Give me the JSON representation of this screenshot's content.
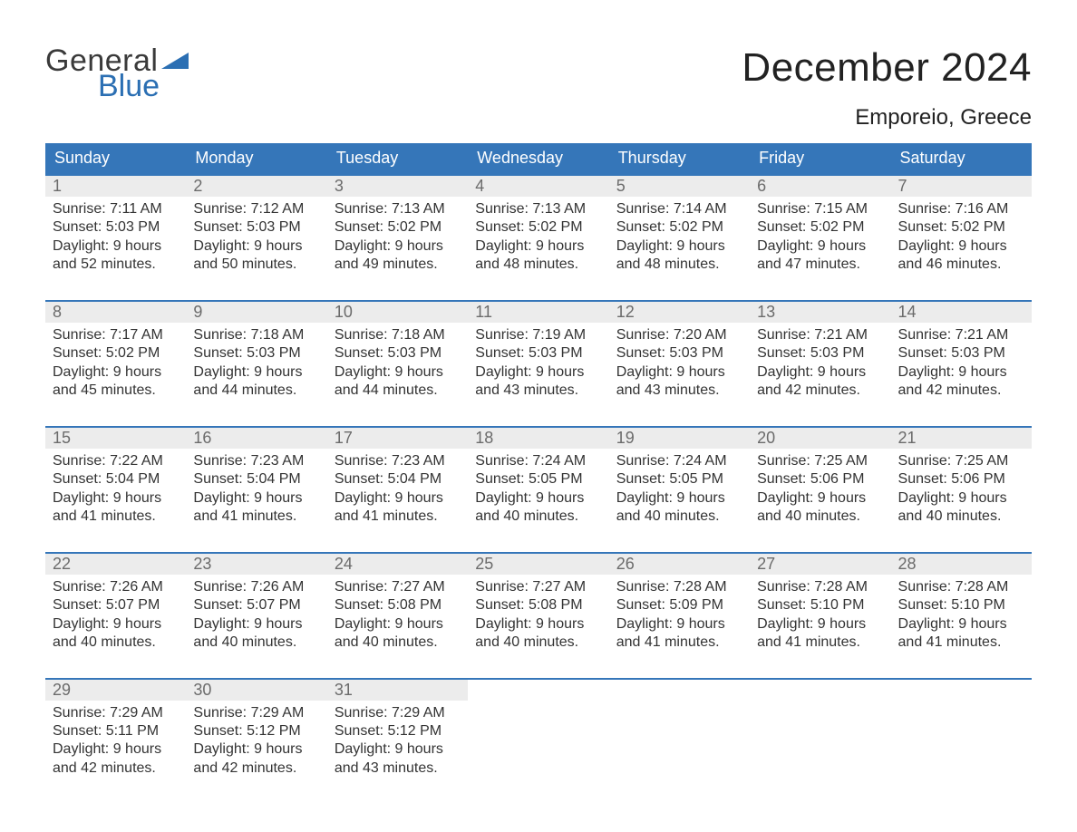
{
  "logo": {
    "word1": "General",
    "word2": "Blue",
    "tri_color": "#2b6fb3"
  },
  "title": "December 2024",
  "location": "Emporeio, Greece",
  "colors": {
    "header_bg": "#3576b9",
    "header_text": "#ffffff",
    "week_border": "#3576b9",
    "daynum_bg": "#ececec",
    "daynum_text": "#6b6b6b",
    "body_text": "#333333",
    "page_bg": "#ffffff"
  },
  "days_of_week": [
    "Sunday",
    "Monday",
    "Tuesday",
    "Wednesday",
    "Thursday",
    "Friday",
    "Saturday"
  ],
  "weeks": [
    [
      {
        "n": "1",
        "sunrise": "Sunrise: 7:11 AM",
        "sunset": "Sunset: 5:03 PM",
        "d1": "Daylight: 9 hours",
        "d2": "and 52 minutes."
      },
      {
        "n": "2",
        "sunrise": "Sunrise: 7:12 AM",
        "sunset": "Sunset: 5:03 PM",
        "d1": "Daylight: 9 hours",
        "d2": "and 50 minutes."
      },
      {
        "n": "3",
        "sunrise": "Sunrise: 7:13 AM",
        "sunset": "Sunset: 5:02 PM",
        "d1": "Daylight: 9 hours",
        "d2": "and 49 minutes."
      },
      {
        "n": "4",
        "sunrise": "Sunrise: 7:13 AM",
        "sunset": "Sunset: 5:02 PM",
        "d1": "Daylight: 9 hours",
        "d2": "and 48 minutes."
      },
      {
        "n": "5",
        "sunrise": "Sunrise: 7:14 AM",
        "sunset": "Sunset: 5:02 PM",
        "d1": "Daylight: 9 hours",
        "d2": "and 48 minutes."
      },
      {
        "n": "6",
        "sunrise": "Sunrise: 7:15 AM",
        "sunset": "Sunset: 5:02 PM",
        "d1": "Daylight: 9 hours",
        "d2": "and 47 minutes."
      },
      {
        "n": "7",
        "sunrise": "Sunrise: 7:16 AM",
        "sunset": "Sunset: 5:02 PM",
        "d1": "Daylight: 9 hours",
        "d2": "and 46 minutes."
      }
    ],
    [
      {
        "n": "8",
        "sunrise": "Sunrise: 7:17 AM",
        "sunset": "Sunset: 5:02 PM",
        "d1": "Daylight: 9 hours",
        "d2": "and 45 minutes."
      },
      {
        "n": "9",
        "sunrise": "Sunrise: 7:18 AM",
        "sunset": "Sunset: 5:03 PM",
        "d1": "Daylight: 9 hours",
        "d2": "and 44 minutes."
      },
      {
        "n": "10",
        "sunrise": "Sunrise: 7:18 AM",
        "sunset": "Sunset: 5:03 PM",
        "d1": "Daylight: 9 hours",
        "d2": "and 44 minutes."
      },
      {
        "n": "11",
        "sunrise": "Sunrise: 7:19 AM",
        "sunset": "Sunset: 5:03 PM",
        "d1": "Daylight: 9 hours",
        "d2": "and 43 minutes."
      },
      {
        "n": "12",
        "sunrise": "Sunrise: 7:20 AM",
        "sunset": "Sunset: 5:03 PM",
        "d1": "Daylight: 9 hours",
        "d2": "and 43 minutes."
      },
      {
        "n": "13",
        "sunrise": "Sunrise: 7:21 AM",
        "sunset": "Sunset: 5:03 PM",
        "d1": "Daylight: 9 hours",
        "d2": "and 42 minutes."
      },
      {
        "n": "14",
        "sunrise": "Sunrise: 7:21 AM",
        "sunset": "Sunset: 5:03 PM",
        "d1": "Daylight: 9 hours",
        "d2": "and 42 minutes."
      }
    ],
    [
      {
        "n": "15",
        "sunrise": "Sunrise: 7:22 AM",
        "sunset": "Sunset: 5:04 PM",
        "d1": "Daylight: 9 hours",
        "d2": "and 41 minutes."
      },
      {
        "n": "16",
        "sunrise": "Sunrise: 7:23 AM",
        "sunset": "Sunset: 5:04 PM",
        "d1": "Daylight: 9 hours",
        "d2": "and 41 minutes."
      },
      {
        "n": "17",
        "sunrise": "Sunrise: 7:23 AM",
        "sunset": "Sunset: 5:04 PM",
        "d1": "Daylight: 9 hours",
        "d2": "and 41 minutes."
      },
      {
        "n": "18",
        "sunrise": "Sunrise: 7:24 AM",
        "sunset": "Sunset: 5:05 PM",
        "d1": "Daylight: 9 hours",
        "d2": "and 40 minutes."
      },
      {
        "n": "19",
        "sunrise": "Sunrise: 7:24 AM",
        "sunset": "Sunset: 5:05 PM",
        "d1": "Daylight: 9 hours",
        "d2": "and 40 minutes."
      },
      {
        "n": "20",
        "sunrise": "Sunrise: 7:25 AM",
        "sunset": "Sunset: 5:06 PM",
        "d1": "Daylight: 9 hours",
        "d2": "and 40 minutes."
      },
      {
        "n": "21",
        "sunrise": "Sunrise: 7:25 AM",
        "sunset": "Sunset: 5:06 PM",
        "d1": "Daylight: 9 hours",
        "d2": "and 40 minutes."
      }
    ],
    [
      {
        "n": "22",
        "sunrise": "Sunrise: 7:26 AM",
        "sunset": "Sunset: 5:07 PM",
        "d1": "Daylight: 9 hours",
        "d2": "and 40 minutes."
      },
      {
        "n": "23",
        "sunrise": "Sunrise: 7:26 AM",
        "sunset": "Sunset: 5:07 PM",
        "d1": "Daylight: 9 hours",
        "d2": "and 40 minutes."
      },
      {
        "n": "24",
        "sunrise": "Sunrise: 7:27 AM",
        "sunset": "Sunset: 5:08 PM",
        "d1": "Daylight: 9 hours",
        "d2": "and 40 minutes."
      },
      {
        "n": "25",
        "sunrise": "Sunrise: 7:27 AM",
        "sunset": "Sunset: 5:08 PM",
        "d1": "Daylight: 9 hours",
        "d2": "and 40 minutes."
      },
      {
        "n": "26",
        "sunrise": "Sunrise: 7:28 AM",
        "sunset": "Sunset: 5:09 PM",
        "d1": "Daylight: 9 hours",
        "d2": "and 41 minutes."
      },
      {
        "n": "27",
        "sunrise": "Sunrise: 7:28 AM",
        "sunset": "Sunset: 5:10 PM",
        "d1": "Daylight: 9 hours",
        "d2": "and 41 minutes."
      },
      {
        "n": "28",
        "sunrise": "Sunrise: 7:28 AM",
        "sunset": "Sunset: 5:10 PM",
        "d1": "Daylight: 9 hours",
        "d2": "and 41 minutes."
      }
    ],
    [
      {
        "n": "29",
        "sunrise": "Sunrise: 7:29 AM",
        "sunset": "Sunset: 5:11 PM",
        "d1": "Daylight: 9 hours",
        "d2": "and 42 minutes."
      },
      {
        "n": "30",
        "sunrise": "Sunrise: 7:29 AM",
        "sunset": "Sunset: 5:12 PM",
        "d1": "Daylight: 9 hours",
        "d2": "and 42 minutes."
      },
      {
        "n": "31",
        "sunrise": "Sunrise: 7:29 AM",
        "sunset": "Sunset: 5:12 PM",
        "d1": "Daylight: 9 hours",
        "d2": "and 43 minutes."
      },
      null,
      null,
      null,
      null
    ]
  ]
}
